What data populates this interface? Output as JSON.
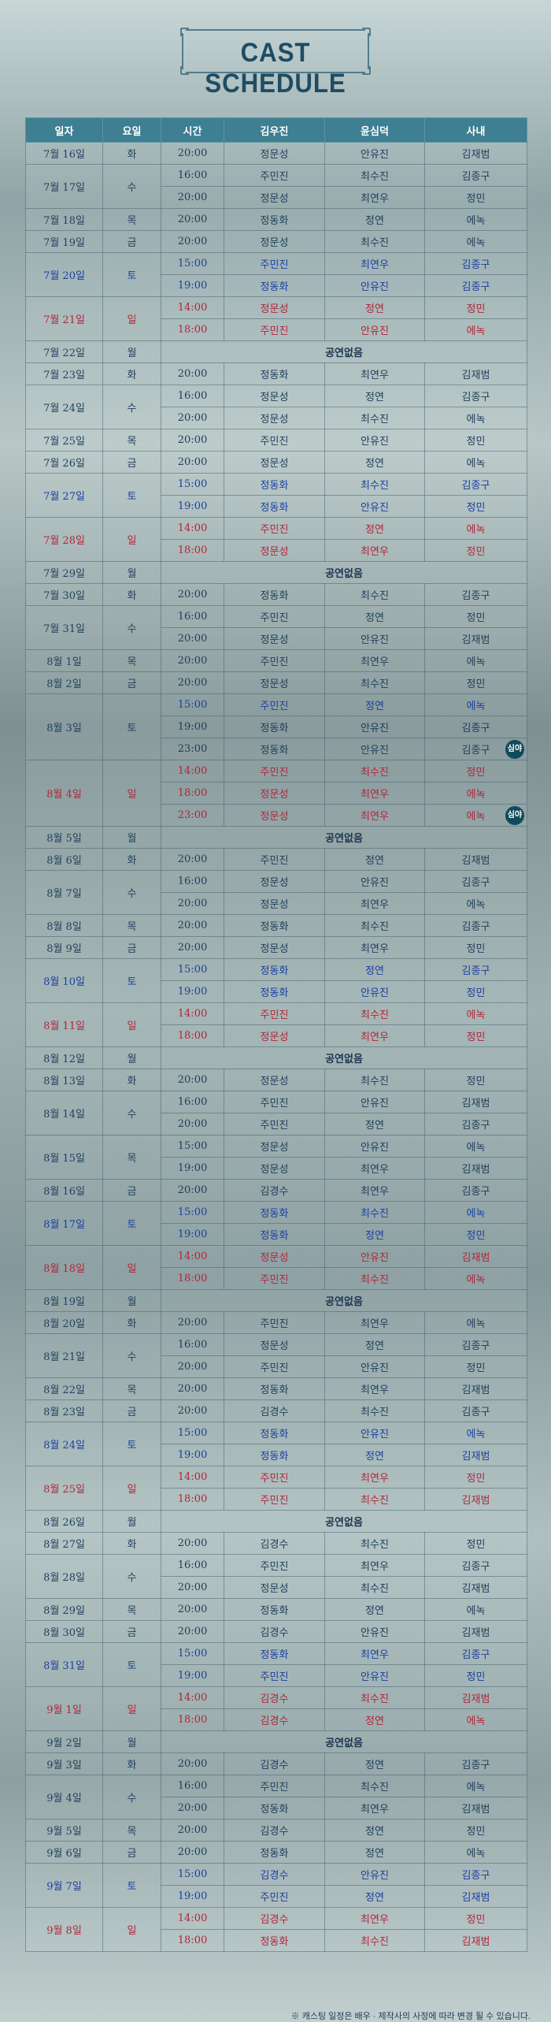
{
  "title": "CAST SCHEDULE",
  "headers": [
    "일자",
    "요일",
    "시간",
    "김우진",
    "윤심덕",
    "사내"
  ],
  "colors": {
    "header_bg": "#3e7f91",
    "sat": "#1b3fa0",
    "sun": "#b0263a",
    "text": "#22415e"
  },
  "night_badge": "심야",
  "day_off_text": "공연없음",
  "days": [
    {
      "date": "7월 16일",
      "dow": "화",
      "kind": "n",
      "shows": [
        [
          "20:00",
          "정문성",
          "안유진",
          "김재범"
        ]
      ]
    },
    {
      "date": "7월 17일",
      "dow": "수",
      "kind": "n",
      "shows": [
        [
          "16:00",
          "주민진",
          "최수진",
          "김종구"
        ],
        [
          "20:00",
          "정문성",
          "최연우",
          "정민"
        ]
      ]
    },
    {
      "date": "7월 18일",
      "dow": "목",
      "kind": "n",
      "shows": [
        [
          "20:00",
          "정동화",
          "정연",
          "에녹"
        ]
      ]
    },
    {
      "date": "7월 19일",
      "dow": "금",
      "kind": "n",
      "shows": [
        [
          "20:00",
          "정문성",
          "최수진",
          "에녹"
        ]
      ]
    },
    {
      "date": "7월 20일",
      "dow": "토",
      "kind": "b",
      "shows": [
        [
          "15:00",
          "주민진",
          "최연우",
          "김종구"
        ],
        [
          "19:00",
          "정동화",
          "안유진",
          "김종구"
        ]
      ]
    },
    {
      "date": "7월 21일",
      "dow": "일",
      "kind": "r",
      "shows": [
        [
          "14:00",
          "정문성",
          "정연",
          "정민"
        ],
        [
          "18:00",
          "주민진",
          "안유진",
          "에녹"
        ]
      ]
    },
    {
      "date": "7월 22일",
      "dow": "월",
      "kind": "off"
    },
    {
      "date": "7월 23일",
      "dow": "화",
      "kind": "n",
      "shows": [
        [
          "20:00",
          "정동화",
          "최연우",
          "김재범"
        ]
      ]
    },
    {
      "date": "7월 24일",
      "dow": "수",
      "kind": "n",
      "shows": [
        [
          "16:00",
          "정문성",
          "정연",
          "김종구"
        ],
        [
          "20:00",
          "정문성",
          "최수진",
          "에녹"
        ]
      ]
    },
    {
      "date": "7월 25일",
      "dow": "목",
      "kind": "n",
      "shows": [
        [
          "20:00",
          "주민진",
          "안유진",
          "정민"
        ]
      ]
    },
    {
      "date": "7월 26일",
      "dow": "금",
      "kind": "n",
      "shows": [
        [
          "20:00",
          "정문성",
          "정연",
          "에녹"
        ]
      ]
    },
    {
      "date": "7월 27일",
      "dow": "토",
      "kind": "b",
      "shows": [
        [
          "15:00",
          "정동화",
          "최수진",
          "김종구"
        ],
        [
          "19:00",
          "정동화",
          "안유진",
          "정민"
        ]
      ]
    },
    {
      "date": "7월 28일",
      "dow": "일",
      "kind": "r",
      "shows": [
        [
          "14:00",
          "주민진",
          "정연",
          "에녹"
        ],
        [
          "18:00",
          "정문성",
          "최연우",
          "정민"
        ]
      ]
    },
    {
      "date": "7월 29일",
      "dow": "월",
      "kind": "off"
    },
    {
      "date": "7월 30일",
      "dow": "화",
      "kind": "n",
      "shows": [
        [
          "20:00",
          "정동화",
          "최수진",
          "김종구"
        ]
      ]
    },
    {
      "date": "7월 31일",
      "dow": "수",
      "kind": "n",
      "shows": [
        [
          "16:00",
          "주민진",
          "정연",
          "정민"
        ],
        [
          "20:00",
          "정문성",
          "안유진",
          "김재범"
        ]
      ]
    },
    {
      "date": "8월  1일",
      "dow": "목",
      "kind": "n",
      "shows": [
        [
          "20:00",
          "주민진",
          "최연우",
          "에녹"
        ]
      ]
    },
    {
      "date": "8월  2일",
      "dow": "금",
      "kind": "n",
      "shows": [
        [
          "20:00",
          "정문성",
          "최수진",
          "정민"
        ]
      ]
    },
    {
      "date": "8월  3일",
      "dow": "토",
      "kind": "n",
      "split": true,
      "shows": [
        [
          "15:00",
          "주민진",
          "정연",
          "에녹"
        ],
        [
          "19:00",
          "정동화",
          "안유진",
          "김종구"
        ],
        [
          "23:00",
          "정동화",
          "안유진",
          "김종구",
          "night"
        ]
      ]
    },
    {
      "date": "8월  4일",
      "dow": "일",
      "kind": "r",
      "shows": [
        [
          "14:00",
          "주민진",
          "최수진",
          "정민"
        ],
        [
          "18:00",
          "정문성",
          "최연우",
          "에녹"
        ],
        [
          "23:00",
          "정문성",
          "최연우",
          "에녹",
          "night"
        ]
      ]
    },
    {
      "date": "8월  5일",
      "dow": "월",
      "kind": "off"
    },
    {
      "date": "8월  6일",
      "dow": "화",
      "kind": "n",
      "shows": [
        [
          "20:00",
          "주민진",
          "정연",
          "김재범"
        ]
      ]
    },
    {
      "date": "8월  7일",
      "dow": "수",
      "kind": "n",
      "shows": [
        [
          "16:00",
          "정문성",
          "안유진",
          "김종구"
        ],
        [
          "20:00",
          "정문성",
          "최연우",
          "에녹"
        ]
      ]
    },
    {
      "date": "8월  8일",
      "dow": "목",
      "kind": "n",
      "shows": [
        [
          "20:00",
          "정동화",
          "최수진",
          "김종구"
        ]
      ]
    },
    {
      "date": "8월  9일",
      "dow": "금",
      "kind": "n",
      "shows": [
        [
          "20:00",
          "정문성",
          "최연우",
          "정민"
        ]
      ]
    },
    {
      "date": "8월 10일",
      "dow": "토",
      "kind": "b",
      "shows": [
        [
          "15:00",
          "정동화",
          "정연",
          "김종구"
        ],
        [
          "19:00",
          "정동화",
          "안유진",
          "정민"
        ]
      ]
    },
    {
      "date": "8월 11일",
      "dow": "일",
      "kind": "r",
      "shows": [
        [
          "14:00",
          "주민진",
          "최수진",
          "에녹"
        ],
        [
          "18:00",
          "정문성",
          "최연우",
          "정민"
        ]
      ]
    },
    {
      "date": "8월 12일",
      "dow": "월",
      "kind": "off"
    },
    {
      "date": "8월 13일",
      "dow": "화",
      "kind": "n",
      "shows": [
        [
          "20:00",
          "정문성",
          "최수진",
          "정민"
        ]
      ]
    },
    {
      "date": "8월 14일",
      "dow": "수",
      "kind": "n",
      "shows": [
        [
          "16:00",
          "주민진",
          "안유진",
          "김재범"
        ],
        [
          "20:00",
          "주민진",
          "정연",
          "김종구"
        ]
      ]
    },
    {
      "date": "8월 15일",
      "dow": "목",
      "kind": "n",
      "shows": [
        [
          "15:00",
          "정문성",
          "안유진",
          "에녹"
        ],
        [
          "19:00",
          "정문성",
          "최연우",
          "김재범"
        ]
      ]
    },
    {
      "date": "8월 16일",
      "dow": "금",
      "kind": "n",
      "shows": [
        [
          "20:00",
          "김경수",
          "최연우",
          "김종구"
        ]
      ]
    },
    {
      "date": "8월 17일",
      "dow": "토",
      "kind": "b",
      "shows": [
        [
          "15:00",
          "정동화",
          "최수진",
          "에녹"
        ],
        [
          "19:00",
          "정동화",
          "정연",
          "정민"
        ]
      ]
    },
    {
      "date": "8월 18일",
      "dow": "일",
      "kind": "r",
      "shows": [
        [
          "14:00",
          "정문성",
          "안유진",
          "김재범"
        ],
        [
          "18:00",
          "주민진",
          "최수진",
          "에녹"
        ]
      ]
    },
    {
      "date": "8월 19일",
      "dow": "월",
      "kind": "off"
    },
    {
      "date": "8월 20일",
      "dow": "화",
      "kind": "n",
      "shows": [
        [
          "20:00",
          "주민진",
          "최연우",
          "에녹"
        ]
      ]
    },
    {
      "date": "8월 21일",
      "dow": "수",
      "kind": "n",
      "shows": [
        [
          "16:00",
          "정문성",
          "정연",
          "김종구"
        ],
        [
          "20:00",
          "주민진",
          "안유진",
          "정민"
        ]
      ]
    },
    {
      "date": "8월 22일",
      "dow": "목",
      "kind": "n",
      "shows": [
        [
          "20:00",
          "정동화",
          "최연우",
          "김재범"
        ]
      ]
    },
    {
      "date": "8월 23일",
      "dow": "금",
      "kind": "n",
      "shows": [
        [
          "20:00",
          "김경수",
          "최수진",
          "김종구"
        ]
      ]
    },
    {
      "date": "8월 24일",
      "dow": "토",
      "kind": "b",
      "shows": [
        [
          "15:00",
          "정동화",
          "안유진",
          "에녹"
        ],
        [
          "19:00",
          "정동화",
          "정연",
          "김재범"
        ]
      ]
    },
    {
      "date": "8월 25일",
      "dow": "일",
      "kind": "r",
      "shows": [
        [
          "14:00",
          "주민진",
          "최연우",
          "정민"
        ],
        [
          "18:00",
          "주민진",
          "최수진",
          "김재범"
        ]
      ]
    },
    {
      "date": "8월 26일",
      "dow": "월",
      "kind": "off"
    },
    {
      "date": "8월 27일",
      "dow": "화",
      "kind": "n",
      "shows": [
        [
          "20:00",
          "김경수",
          "최수진",
          "정민"
        ]
      ]
    },
    {
      "date": "8월 28일",
      "dow": "수",
      "kind": "n",
      "shows": [
        [
          "16:00",
          "주민진",
          "최연우",
          "김종구"
        ],
        [
          "20:00",
          "정문성",
          "최수진",
          "김재범"
        ]
      ]
    },
    {
      "date": "8월 29일",
      "dow": "목",
      "kind": "n",
      "shows": [
        [
          "20:00",
          "정동화",
          "정연",
          "에녹"
        ]
      ]
    },
    {
      "date": "8월 30일",
      "dow": "금",
      "kind": "n",
      "shows": [
        [
          "20:00",
          "김경수",
          "안유진",
          "김재범"
        ]
      ]
    },
    {
      "date": "8월 31일",
      "dow": "토",
      "kind": "b",
      "shows": [
        [
          "15:00",
          "정동화",
          "최연우",
          "김종구"
        ],
        [
          "19:00",
          "주민진",
          "안유진",
          "정민"
        ]
      ]
    },
    {
      "date": "9월  1일",
      "dow": "일",
      "kind": "r",
      "shows": [
        [
          "14:00",
          "김경수",
          "최수진",
          "김재범"
        ],
        [
          "18:00",
          "김경수",
          "정연",
          "에녹"
        ]
      ]
    },
    {
      "date": "9월  2일",
      "dow": "월",
      "kind": "off"
    },
    {
      "date": "9월  3일",
      "dow": "화",
      "kind": "n",
      "shows": [
        [
          "20:00",
          "김경수",
          "정연",
          "김종구"
        ]
      ]
    },
    {
      "date": "9월  4일",
      "dow": "수",
      "kind": "n",
      "shows": [
        [
          "16:00",
          "주민진",
          "최수진",
          "에녹"
        ],
        [
          "20:00",
          "정동화",
          "최연우",
          "김재범"
        ]
      ]
    },
    {
      "date": "9월  5일",
      "dow": "목",
      "kind": "n",
      "shows": [
        [
          "20:00",
          "김경수",
          "정연",
          "정민"
        ]
      ]
    },
    {
      "date": "9월  6일",
      "dow": "금",
      "kind": "n",
      "shows": [
        [
          "20:00",
          "정동화",
          "정연",
          "에녹"
        ]
      ]
    },
    {
      "date": "9월  7일",
      "dow": "토",
      "kind": "b",
      "shows": [
        [
          "15:00",
          "김경수",
          "안유진",
          "김종구"
        ],
        [
          "19:00",
          "주민진",
          "정연",
          "김재범"
        ]
      ]
    },
    {
      "date": "9월  8일",
      "dow": "일",
      "kind": "r",
      "shows": [
        [
          "14:00",
          "김경수",
          "최연우",
          "정민"
        ],
        [
          "18:00",
          "정동화",
          "최수진",
          "김재범"
        ]
      ]
    }
  ],
  "footnote": "※ 캐스팅 일정은 배우 · 제작사의 사정에 따라 변경 될 수 있습니다."
}
